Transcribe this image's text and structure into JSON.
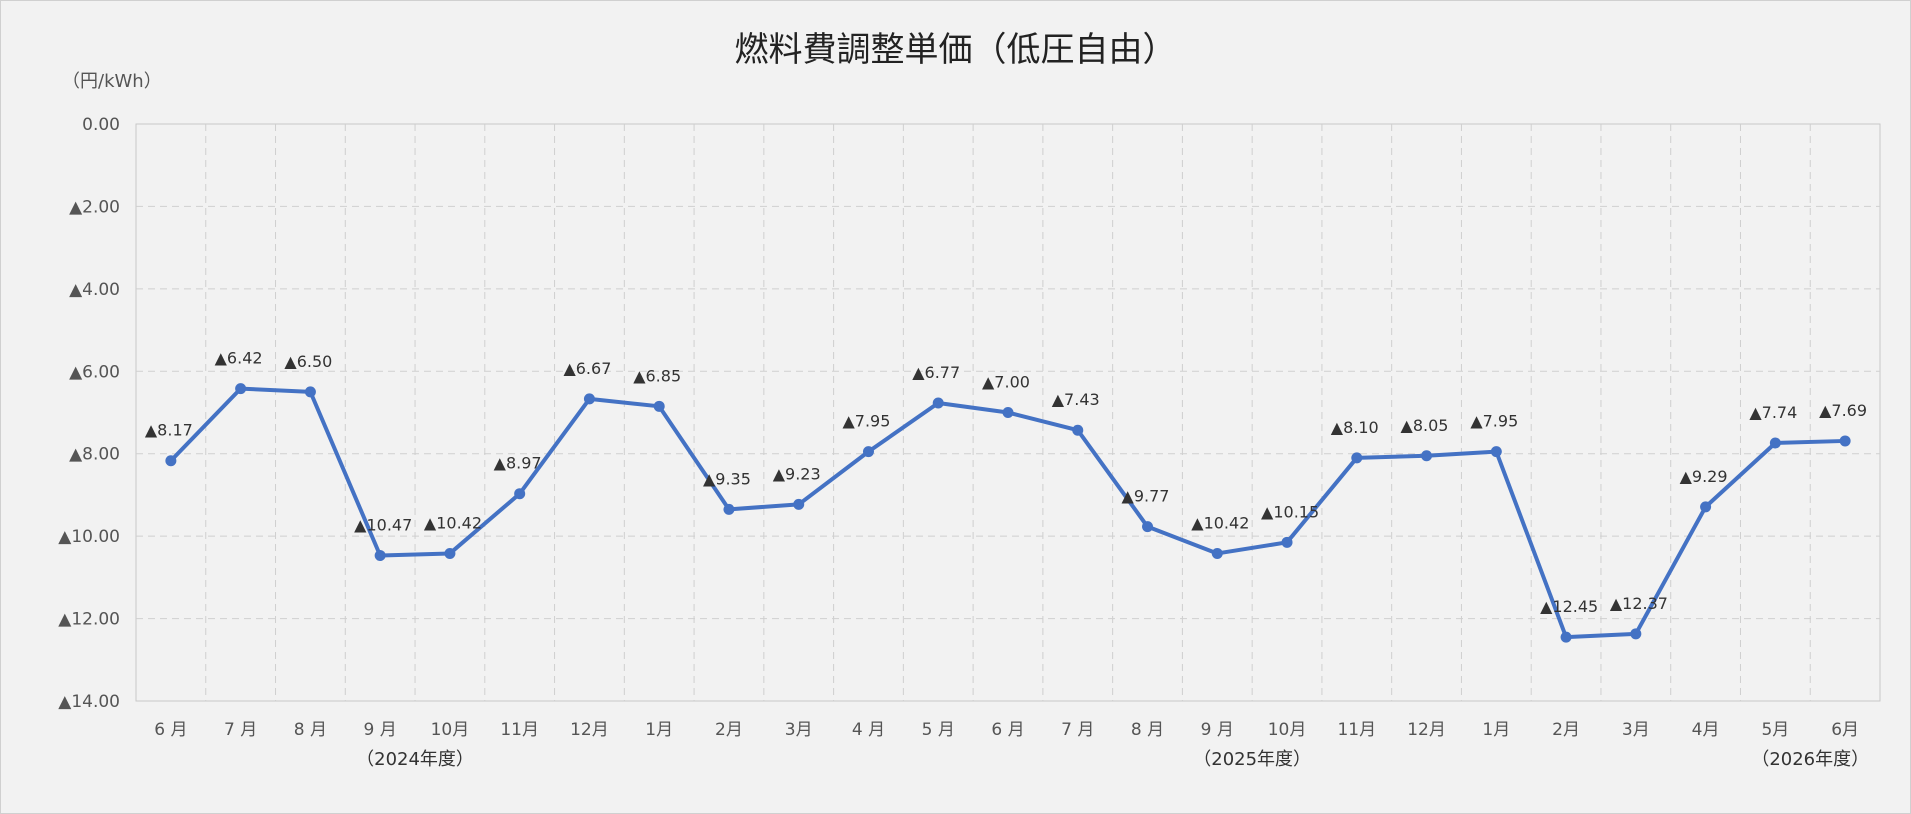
{
  "chart_data": {
    "type": "line",
    "title": "燃料費調整単価（低圧自由）",
    "unit_label": "（円/kWh）",
    "neg_marker": "▲",
    "y_ticks": [
      "0.00",
      "▲2.00",
      "▲4.00",
      "▲6.00",
      "▲8.00",
      "▲10.00",
      "▲12.00",
      "▲14.00"
    ],
    "ylim": [
      0,
      14
    ],
    "y_inverted": true,
    "grid": true,
    "categories": [
      "6 月",
      "7 月",
      "8 月",
      "9 月",
      "10月",
      "11月",
      "12月",
      "1月",
      "2月",
      "3月",
      "4 月",
      "5 月",
      "6 月",
      "7 月",
      "8 月",
      "9 月",
      "10月",
      "11月",
      "12月",
      "1月",
      "2月",
      "3月",
      "4月",
      "5月",
      "6月"
    ],
    "fiscal_year_labels": [
      {
        "text": "（2024年度）",
        "category_index": 3.5
      },
      {
        "text": "（2025年度）",
        "category_index": 15.5
      },
      {
        "text": "（2026年度）",
        "category_index": 23.5
      }
    ],
    "series": [
      {
        "color": "#4472c4",
        "values": [
          8.17,
          6.42,
          6.5,
          10.47,
          10.42,
          8.97,
          6.67,
          6.85,
          9.35,
          9.23,
          7.95,
          6.77,
          7.0,
          7.43,
          9.77,
          10.42,
          10.15,
          8.1,
          8.05,
          7.95,
          12.45,
          12.37,
          9.29,
          7.74,
          7.69
        ],
        "labels": [
          "▲8.17",
          "▲6.42",
          "▲6.50",
          "▲10.47",
          "▲10.42",
          "▲8.97",
          "▲6.67",
          "▲6.85",
          "▲9.35",
          "▲9.23",
          "▲7.95",
          "▲6.77",
          "▲7.00",
          "▲7.43",
          "▲9.77",
          "▲10.42",
          "▲10.15",
          "▲8.10",
          "▲8.05",
          "▲7.95",
          "▲12.45",
          "▲12.37",
          "▲9.29",
          "▲7.74",
          "▲7.69"
        ]
      }
    ]
  }
}
